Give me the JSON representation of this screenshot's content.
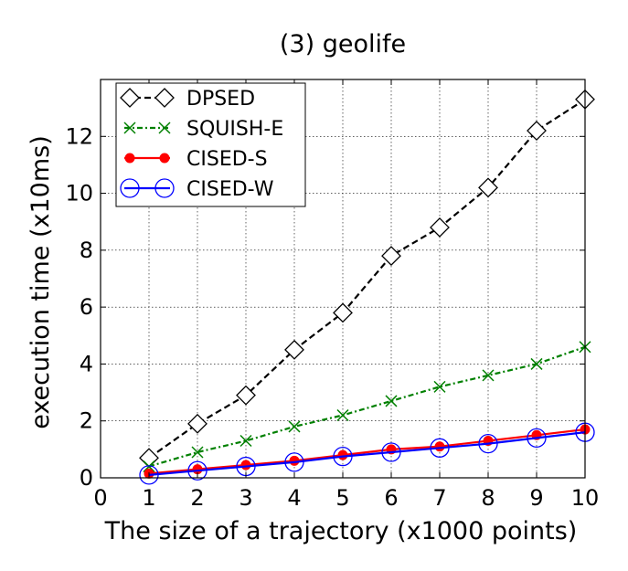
{
  "chart_data": {
    "type": "line",
    "title": "(3) geolife",
    "xlabel": "The size of a trajectory (x1000 points)",
    "ylabel": "execution time (x10ms)",
    "xlim": [
      0,
      10
    ],
    "ylim": [
      0,
      14
    ],
    "xticks": [
      0,
      1,
      2,
      3,
      4,
      5,
      6,
      7,
      8,
      9,
      10
    ],
    "yticks": [
      0,
      2,
      4,
      6,
      8,
      10,
      12
    ],
    "grid": true,
    "legend_position": "top-left",
    "x": [
      1,
      2,
      3,
      4,
      5,
      6,
      7,
      8,
      9,
      10
    ],
    "series": [
      {
        "name": "DPSED",
        "color": "#000000",
        "dash": "dashed",
        "marker": "diamond",
        "values": [
          0.7,
          1.9,
          2.9,
          4.5,
          5.8,
          7.8,
          8.8,
          10.2,
          12.2,
          13.3
        ]
      },
      {
        "name": "SQUISH-E",
        "color": "#008000",
        "dash": "dashdot",
        "marker": "x",
        "values": [
          0.4,
          0.9,
          1.3,
          1.8,
          2.2,
          2.7,
          3.2,
          3.6,
          4.0,
          4.6
        ]
      },
      {
        "name": "CISED-S",
        "color": "#ff0000",
        "dash": "solid",
        "marker": "dot",
        "values": [
          0.15,
          0.3,
          0.45,
          0.6,
          0.8,
          1.0,
          1.1,
          1.3,
          1.5,
          1.7
        ]
      },
      {
        "name": "CISED-W",
        "color": "#0000ff",
        "dash": "solid",
        "marker": "circle",
        "values": [
          0.1,
          0.25,
          0.4,
          0.55,
          0.75,
          0.9,
          1.05,
          1.2,
          1.4,
          1.6
        ]
      }
    ]
  }
}
